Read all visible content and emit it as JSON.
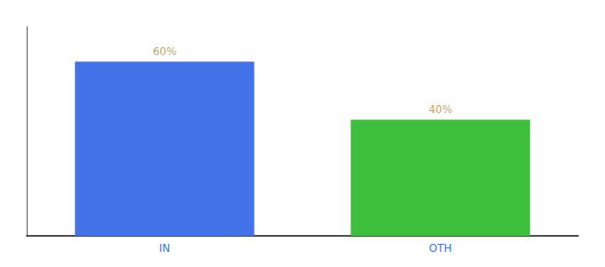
{
  "chart_data": {
    "type": "bar",
    "categories": [
      "IN",
      "OTH"
    ],
    "values": [
      60,
      40
    ],
    "value_labels": [
      "60%",
      "40%"
    ],
    "colors": [
      "#4472e8",
      "#3dbe3d"
    ],
    "ylim": [
      0,
      72
    ],
    "yticks": [],
    "grid": false,
    "data_labels": true,
    "tick_labels": "x"
  }
}
